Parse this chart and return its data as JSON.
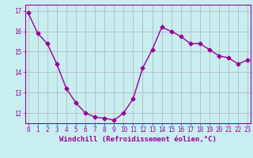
{
  "x": [
    0,
    1,
    2,
    3,
    4,
    5,
    6,
    7,
    8,
    9,
    10,
    11,
    12,
    13,
    14,
    15,
    16,
    17,
    18,
    19,
    20,
    21,
    22,
    23
  ],
  "y": [
    16.9,
    15.9,
    15.4,
    14.4,
    13.2,
    12.5,
    12.0,
    11.8,
    11.75,
    11.65,
    12.0,
    12.7,
    14.2,
    15.1,
    16.2,
    16.0,
    15.75,
    15.4,
    15.4,
    15.1,
    14.8,
    14.7,
    14.4,
    14.6
  ],
  "line_color": "#990099",
  "marker": "D",
  "marker_size": 2.5,
  "bg_color": "#c8eef0",
  "grid_color": "#b0b0b0",
  "xlabel": "Windchill (Refroidissement éolien,°C)",
  "ylabel": "",
  "ylim": [
    11.5,
    17.3
  ],
  "yticks": [
    12,
    13,
    14,
    15,
    16,
    17
  ],
  "xticks": [
    0,
    1,
    2,
    3,
    4,
    5,
    6,
    7,
    8,
    9,
    10,
    11,
    12,
    13,
    14,
    15,
    16,
    17,
    18,
    19,
    20,
    21,
    22,
    23
  ],
  "xlim": [
    -0.3,
    23.3
  ],
  "tick_color": "#990099",
  "tick_fontsize": 5.5,
  "xlabel_fontsize": 6.5,
  "xlabel_color": "#990099",
  "line_width": 1.0
}
